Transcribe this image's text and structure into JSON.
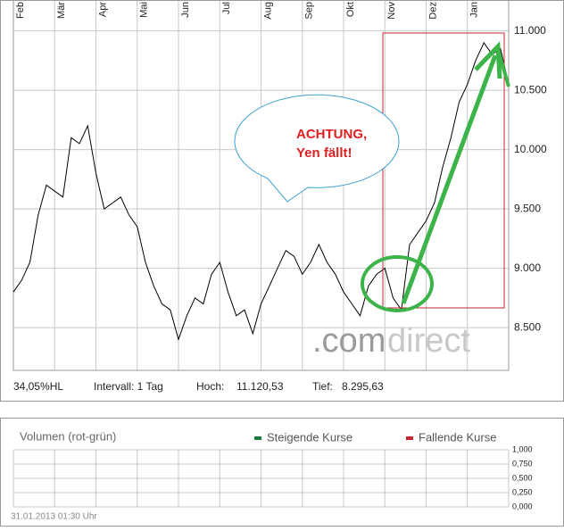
{
  "chart_data": [
    {
      "type": "line",
      "categories": [
        "Feb",
        null,
        null,
        null,
        null,
        "Mär",
        null,
        null,
        null,
        null,
        "Apr",
        null,
        null,
        null,
        null,
        "Mai",
        null,
        null,
        null,
        null,
        "Jun",
        null,
        null,
        null,
        null,
        "Jul",
        null,
        null,
        null,
        null,
        "Aug",
        null,
        null,
        null,
        null,
        "Sep",
        null,
        null,
        null,
        null,
        "Okt",
        null,
        null,
        null,
        null,
        "Nov",
        null,
        null,
        null,
        null,
        "Dez",
        null,
        null,
        null,
        null,
        "Jan",
        null,
        null,
        null,
        null,
        null
      ],
      "values": [
        8800,
        8900,
        9050,
        9450,
        9700,
        9650,
        9600,
        10100,
        10050,
        10200,
        9800,
        9500,
        9550,
        9600,
        9450,
        9350,
        9050,
        8850,
        8700,
        8650,
        8400,
        8600,
        8750,
        8700,
        8950,
        9050,
        8800,
        8600,
        8650,
        8450,
        8700,
        8850,
        9000,
        9150,
        9100,
        8950,
        9050,
        9200,
        9050,
        8950,
        8800,
        8700,
        8600,
        8850,
        8950,
        9000,
        8750,
        8650,
        9200,
        9300,
        9400,
        9550,
        9850,
        10100,
        10400,
        10550,
        10750,
        10900,
        10800,
        10850,
        10550
      ],
      "color": "#000000",
      "ylim": [
        8140,
        11260
      ],
      "yticks": [
        {
          "value": 8500,
          "label": "8.500"
        },
        {
          "value": 9000,
          "label": "9.000"
        },
        {
          "value": 9500,
          "label": "9.500"
        },
        {
          "value": 10000,
          "label": "10.000"
        },
        {
          "value": 10500,
          "label": "10.500"
        },
        {
          "value": 11000,
          "label": "11.000"
        }
      ],
      "grid": true,
      "annotation": [
        "ACHTUNG,",
        "Yen fällt!"
      ],
      "watermark": [
        ".com",
        "direct"
      ],
      "stats": [
        "34,05%HL",
        "Intervall: 1 Tag",
        "Hoch:",
        "11.120,53",
        "Tief:",
        "8.295,63"
      ]
    },
    {
      "type": "volume",
      "title": "Volumen (rot-grün)",
      "legend": [
        {
          "name": "Steigende Kurse",
          "color": "#1e7a3a"
        },
        {
          "name": "Fallende Kurse",
          "color": "#c0262d"
        }
      ],
      "ylim": [
        0,
        1
      ],
      "yticks": [
        {
          "value": 0,
          "label": "0,000"
        },
        {
          "value": 0.25,
          "label": "0,250"
        },
        {
          "value": 0.5,
          "label": "0,500"
        },
        {
          "value": 0.75,
          "label": "0,750"
        },
        {
          "value": 1,
          "label": "1,000"
        }
      ],
      "grid": true,
      "timestamp": "31.01.2013 01:30 Uhr"
    }
  ]
}
